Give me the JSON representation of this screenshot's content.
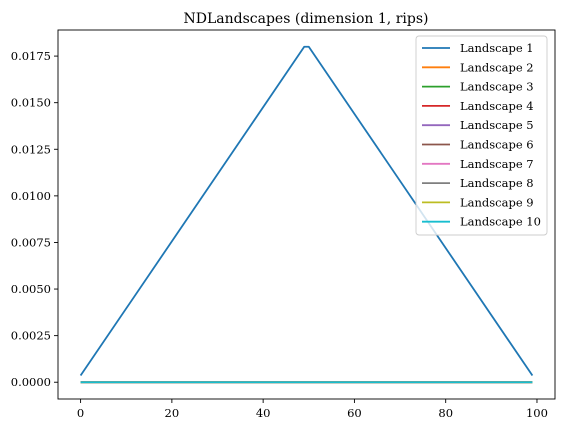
{
  "chart_data": {
    "type": "line",
    "title": "NDLandscapes (dimension 1, rips)",
    "xlabel": "",
    "ylabel": "",
    "xlim": [
      -4.95,
      103.95
    ],
    "ylim": [
      -0.0009,
      0.0189
    ],
    "x_ticks": [
      0,
      20,
      40,
      60,
      80,
      100
    ],
    "x_tick_labels": [
      "0",
      "20",
      "40",
      "60",
      "80",
      "100"
    ],
    "y_ticks": [
      0.0,
      0.0025,
      0.005,
      0.0075,
      0.01,
      0.0125,
      0.015,
      0.0175
    ],
    "y_tick_labels": [
      "0.0000",
      "0.0025",
      "0.0050",
      "0.0075",
      "0.0100",
      "0.0125",
      "0.0150",
      "0.0175"
    ],
    "grid": false,
    "legend_position": "top-right",
    "series": [
      {
        "name": "Landscape 1",
        "color": "#1f77b4",
        "points": [
          [
            0,
            0.00036
          ],
          [
            49,
            0.018
          ],
          [
            50,
            0.018
          ],
          [
            99,
            0.00036
          ]
        ]
      },
      {
        "name": "Landscape 2",
        "color": "#ff7f0e",
        "points": [
          [
            0,
            0
          ],
          [
            99,
            0
          ]
        ]
      },
      {
        "name": "Landscape 3",
        "color": "#2ca02c",
        "points": [
          [
            0,
            0
          ],
          [
            99,
            0
          ]
        ]
      },
      {
        "name": "Landscape 4",
        "color": "#d62728",
        "points": [
          [
            0,
            0
          ],
          [
            99,
            0
          ]
        ]
      },
      {
        "name": "Landscape 5",
        "color": "#9467bd",
        "points": [
          [
            0,
            0
          ],
          [
            99,
            0
          ]
        ]
      },
      {
        "name": "Landscape 6",
        "color": "#8c564b",
        "points": [
          [
            0,
            0
          ],
          [
            99,
            0
          ]
        ]
      },
      {
        "name": "Landscape 7",
        "color": "#e377c2",
        "points": [
          [
            0,
            0
          ],
          [
            99,
            0
          ]
        ]
      },
      {
        "name": "Landscape 8",
        "color": "#7f7f7f",
        "points": [
          [
            0,
            0
          ],
          [
            99,
            0
          ]
        ]
      },
      {
        "name": "Landscape 9",
        "color": "#bcbd22",
        "points": [
          [
            0,
            0
          ],
          [
            99,
            0
          ]
        ]
      },
      {
        "name": "Landscape 10",
        "color": "#17becf",
        "points": [
          [
            0,
            0
          ],
          [
            99,
            0
          ]
        ]
      }
    ]
  }
}
